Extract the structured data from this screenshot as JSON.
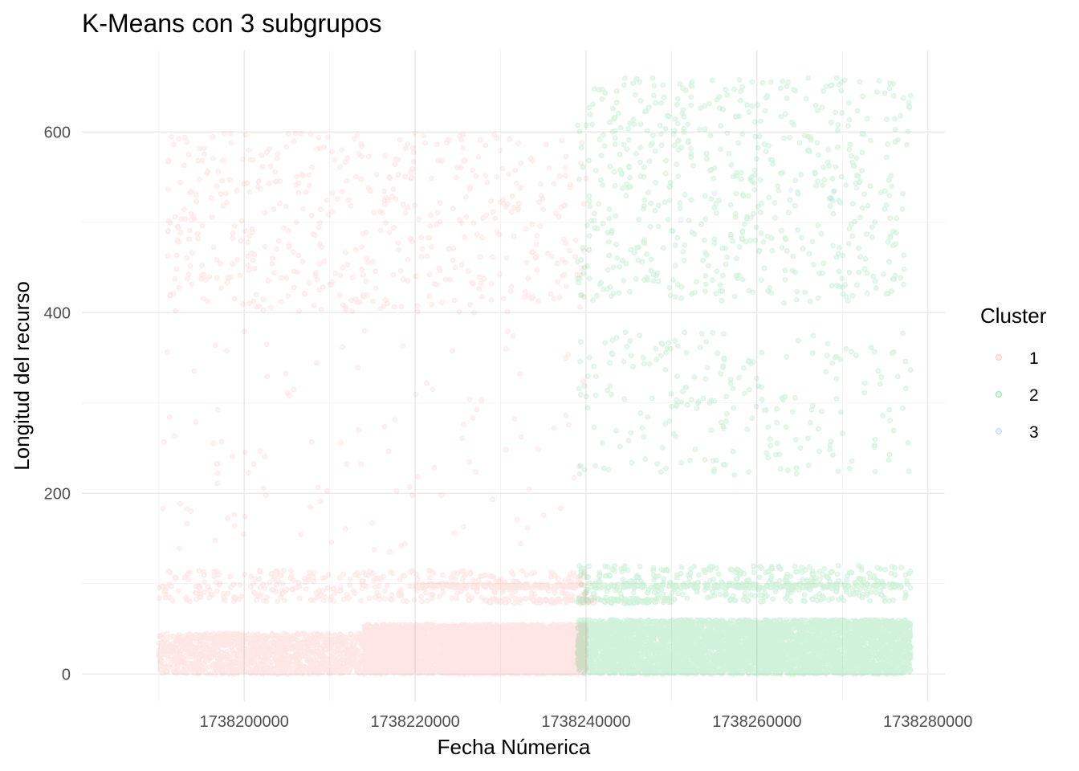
{
  "chart_data": {
    "type": "scatter",
    "title": "K-Means con 3 subgrupos",
    "xlabel": "Fecha Númerica",
    "ylabel": "Longitud del recurso",
    "xlim": [
      1738181000,
      1738282000
    ],
    "ylim": [
      -30,
      690
    ],
    "x_ticks": [
      1738200000,
      1738220000,
      1738240000,
      1738260000,
      1738280000
    ],
    "x_tick_labels": [
      "1738200000",
      "1738220000",
      "1738240000",
      "1738260000",
      "1738280000"
    ],
    "y_ticks": [
      0,
      200,
      400,
      600
    ],
    "y_tick_labels": [
      "0",
      "200",
      "400",
      "600"
    ],
    "grid": true,
    "point_alpha": 0.1,
    "legend": {
      "title": "Cluster",
      "position": "right",
      "entries": [
        {
          "label": "1",
          "color": "#F8766D"
        },
        {
          "label": "2",
          "color": "#00BA38"
        },
        {
          "label": "3",
          "color": "#619CFF"
        }
      ]
    },
    "series": [
      {
        "name": "1",
        "color": "#F8766D",
        "x_range": [
          1738190000,
          1738240000
        ],
        "density_bands": [
          {
            "x": [
              1738190000,
              1738214000
            ],
            "y": [
              0,
              45
            ],
            "count": 1300
          },
          {
            "x": [
              1738214000,
              1738240000
            ],
            "y": [
              0,
              55
            ],
            "count": 4200
          },
          {
            "x": [
              1738190000,
              1738240000
            ],
            "y": [
              80,
              115
            ],
            "count": 350
          },
          {
            "x": [
              1738220000,
              1738240000
            ],
            "y": [
              95,
              100
            ],
            "count": 180
          },
          {
            "x": [
              1738228000,
              1738241000
            ],
            "y": [
              78,
              84
            ],
            "count": 70
          },
          {
            "x": [
              1738190000,
              1738240000
            ],
            "y": [
              130,
              380
            ],
            "count": 110
          },
          {
            "x": [
              1738191000,
              1738240000
            ],
            "y": [
              400,
              600
            ],
            "count": 520
          }
        ]
      },
      {
        "name": "2",
        "color": "#00BA38",
        "x_range": [
          1738239000,
          1738278000
        ],
        "density_bands": [
          {
            "x": [
              1738239000,
              1738278000
            ],
            "y": [
              0,
              60
            ],
            "count": 5500
          },
          {
            "x": [
              1738239000,
              1738278000
            ],
            "y": [
              80,
              120
            ],
            "count": 380
          },
          {
            "x": [
              1738241000,
              1738278000
            ],
            "y": [
              95,
              100
            ],
            "count": 220
          },
          {
            "x": [
              1738239000,
              1738250000
            ],
            "y": [
              78,
              84
            ],
            "count": 80
          },
          {
            "x": [
              1738239000,
              1738278000
            ],
            "y": [
              220,
              380
            ],
            "count": 230
          },
          {
            "x": [
              1738239000,
              1738278000
            ],
            "y": [
              410,
              660
            ],
            "count": 620
          }
        ]
      },
      {
        "name": "3",
        "color": "#619CFF",
        "x_range": [
          1738240000,
          1738275000
        ],
        "density_bands": [
          {
            "x": [
              1738250000,
              1738272000
            ],
            "y": [
              500,
              560
            ],
            "count": 6
          }
        ]
      }
    ]
  }
}
